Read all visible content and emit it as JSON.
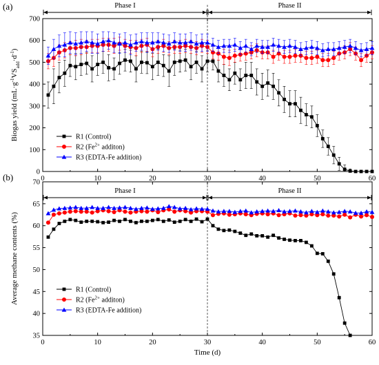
{
  "chart_data": [
    {
      "type": "line",
      "panel_label": "(a)",
      "xlabel": "",
      "ylabel_parts": [
        "Biogas yield (mL·g",
        "-1",
        "VS",
        "add",
        "·d",
        "-1",
        ")"
      ],
      "xlim": [
        0,
        60
      ],
      "ylim": [
        0,
        700
      ],
      "xticks": [
        0,
        10,
        20,
        30,
        40,
        50,
        60
      ],
      "yticks": [
        0,
        100,
        200,
        300,
        400,
        500,
        600,
        700
      ],
      "phase_divider_x": 30,
      "phases": [
        "Phase I",
        "Phase II"
      ],
      "error_bars": true,
      "legend_position": "bottom-left",
      "legend": [
        {
          "parts": [
            "R1 (Control)"
          ]
        },
        {
          "parts": [
            "R2 (Fe",
            "2+",
            " additon)"
          ]
        },
        {
          "parts": [
            "R3 (EDTA-Fe addition)"
          ]
        }
      ],
      "x": [
        1,
        2,
        3,
        4,
        5,
        6,
        7,
        8,
        9,
        10,
        11,
        12,
        13,
        14,
        15,
        16,
        17,
        18,
        19,
        20,
        21,
        22,
        23,
        24,
        25,
        26,
        27,
        28,
        29,
        30,
        31,
        32,
        33,
        34,
        35,
        36,
        37,
        38,
        39,
        40,
        41,
        42,
        43,
        44,
        45,
        46,
        47,
        48,
        49,
        50,
        51,
        52,
        53,
        54,
        55,
        56,
        57,
        58,
        59,
        60
      ],
      "series": [
        {
          "name": "R1 (Control)",
          "color": "#000000",
          "marker": "square",
          "values": [
            350,
            390,
            430,
            450,
            485,
            480,
            490,
            495,
            470,
            490,
            500,
            475,
            470,
            495,
            510,
            505,
            470,
            500,
            498,
            480,
            500,
            485,
            460,
            500,
            505,
            510,
            480,
            500,
            470,
            505,
            505,
            460,
            440,
            420,
            450,
            420,
            440,
            440,
            410,
            390,
            405,
            390,
            360,
            330,
            310,
            310,
            280,
            260,
            250,
            210,
            150,
            115,
            75,
            35,
            10,
            2,
            0,
            0,
            0,
            0
          ],
          "errors": [
            60,
            80,
            70,
            60,
            50,
            60,
            50,
            50,
            60,
            50,
            50,
            60,
            50,
            50,
            50,
            50,
            60,
            50,
            50,
            60,
            60,
            50,
            70,
            60,
            50,
            50,
            60,
            50,
            60,
            50,
            40,
            50,
            50,
            50,
            50,
            50,
            60,
            60,
            60,
            60,
            60,
            60,
            60,
            60,
            60,
            60,
            60,
            50,
            50,
            50,
            40,
            40,
            40,
            30,
            20,
            10,
            5,
            5,
            5,
            5
          ]
        },
        {
          "name": "R2 (Fe2+ additon)",
          "color": "#ff0000",
          "marker": "circle",
          "values": [
            505,
            520,
            545,
            555,
            565,
            565,
            570,
            570,
            575,
            575,
            580,
            580,
            575,
            585,
            575,
            570,
            565,
            575,
            580,
            560,
            570,
            575,
            565,
            570,
            570,
            575,
            570,
            565,
            575,
            570,
            545,
            540,
            525,
            520,
            530,
            535,
            540,
            545,
            555,
            545,
            545,
            525,
            540,
            525,
            525,
            530,
            530,
            520,
            520,
            525,
            510,
            510,
            520,
            540,
            545,
            560,
            540,
            510,
            530,
            545
          ],
          "errors": [
            35,
            40,
            35,
            35,
            30,
            35,
            35,
            30,
            30,
            30,
            30,
            30,
            35,
            30,
            30,
            30,
            35,
            30,
            30,
            35,
            30,
            30,
            30,
            30,
            30,
            30,
            30,
            30,
            30,
            30,
            30,
            30,
            35,
            35,
            30,
            30,
            30,
            30,
            30,
            30,
            30,
            30,
            30,
            30,
            30,
            30,
            30,
            30,
            30,
            30,
            30,
            30,
            30,
            30,
            30,
            30,
            30,
            30,
            30,
            30
          ]
        },
        {
          "name": "R3 (EDTA-Fe addition)",
          "color": "#0000ff",
          "marker": "triangle",
          "values": [
            530,
            560,
            575,
            580,
            590,
            585,
            590,
            595,
            590,
            585,
            595,
            600,
            590,
            585,
            590,
            580,
            590,
            595,
            590,
            590,
            595,
            590,
            585,
            595,
            590,
            590,
            595,
            585,
            590,
            590,
            580,
            570,
            575,
            575,
            580,
            565,
            575,
            560,
            575,
            570,
            570,
            580,
            575,
            570,
            575,
            570,
            560,
            565,
            570,
            565,
            555,
            560,
            560,
            565,
            570,
            575,
            565,
            555,
            560,
            565
          ],
          "errors": [
            40,
            45,
            50,
            55,
            50,
            50,
            50,
            45,
            50,
            45,
            45,
            40,
            45,
            45,
            45,
            45,
            40,
            40,
            45,
            45,
            40,
            40,
            40,
            40,
            40,
            40,
            40,
            40,
            40,
            40,
            30,
            30,
            30,
            30,
            30,
            30,
            30,
            30,
            30,
            30,
            30,
            30,
            30,
            30,
            30,
            30,
            30,
            30,
            30,
            30,
            30,
            30,
            30,
            30,
            30,
            30,
            30,
            30,
            30,
            30
          ]
        }
      ]
    },
    {
      "type": "line",
      "panel_label": "(b)",
      "xlabel": "Time (d)",
      "ylabel": "Average methane contents (%)",
      "xlim": [
        0,
        60
      ],
      "ylim": [
        35,
        70
      ],
      "xticks": [
        0,
        10,
        20,
        30,
        40,
        50,
        60
      ],
      "yticks": [
        35,
        40,
        45,
        50,
        55,
        60,
        65,
        70
      ],
      "phase_divider_x": 30,
      "phases": [
        "Phase I",
        "Phase II"
      ],
      "legend_position": "bottom-left",
      "legend": [
        {
          "parts": [
            "R1 (Control)"
          ]
        },
        {
          "parts": [
            "R2 (Fe",
            "2+",
            " additon)"
          ]
        },
        {
          "parts": [
            "R3 (EDTA-Fe addition)"
          ]
        }
      ],
      "x": [
        1,
        2,
        3,
        4,
        5,
        6,
        7,
        8,
        9,
        10,
        11,
        12,
        13,
        14,
        15,
        16,
        17,
        18,
        19,
        20,
        21,
        22,
        23,
        24,
        25,
        26,
        27,
        28,
        29,
        30,
        31,
        32,
        33,
        34,
        35,
        36,
        37,
        38,
        39,
        40,
        41,
        42,
        43,
        44,
        45,
        46,
        47,
        48,
        49,
        50,
        51,
        52,
        53,
        54,
        55,
        56,
        57,
        58,
        59,
        60
      ],
      "series": [
        {
          "name": "R1 (Control)",
          "color": "#000000",
          "marker": "square",
          "values": [
            57.4,
            59.2,
            60.5,
            61.0,
            61.4,
            61.2,
            60.8,
            61.0,
            61.0,
            60.9,
            60.7,
            60.8,
            61.2,
            61.0,
            61.4,
            61.0,
            60.7,
            61.0,
            61.0,
            61.2,
            61.4,
            61.0,
            61.3,
            60.8,
            61.0,
            61.4,
            61.0,
            61.5,
            60.9,
            61.5,
            60.0,
            59.2,
            58.9,
            59.0,
            58.7,
            58.3,
            57.8,
            58.1,
            57.7,
            57.7,
            57.4,
            57.8,
            57.2,
            56.9,
            56.7,
            56.6,
            56.6,
            56.2,
            55.4,
            53.7,
            53.6,
            51.9,
            49.0,
            43.6,
            37.8,
            35.0,
            null,
            null,
            null,
            null
          ]
        },
        {
          "name": "R2 (Fe2+ additon)",
          "color": "#ff0000",
          "marker": "circle",
          "values": [
            60.7,
            62.5,
            62.8,
            63.0,
            63.2,
            63.3,
            63.2,
            63.2,
            63.0,
            63.3,
            63.5,
            63.3,
            63.1,
            63.5,
            63.2,
            63.0,
            63.2,
            63.3,
            63.2,
            63.5,
            63.1,
            63.5,
            63.7,
            63.2,
            63.5,
            63.3,
            63.0,
            63.3,
            63.3,
            63.2,
            62.4,
            62.7,
            62.8,
            62.5,
            62.6,
            62.8,
            62.6,
            62.4,
            62.7,
            62.8,
            62.6,
            62.8,
            62.4,
            62.6,
            62.8,
            62.3,
            62.4,
            62.3,
            62.6,
            62.4,
            62.6,
            62.3,
            62.3,
            62.1,
            62.5,
            61.9,
            62.5,
            62.1,
            62.4,
            62.0
          ]
        },
        {
          "name": "R3 (EDTA-Fe addition)",
          "color": "#0000ff",
          "marker": "triangle",
          "values": [
            62.8,
            63.6,
            63.9,
            64.0,
            64.1,
            64.2,
            64.0,
            64.0,
            64.2,
            64.0,
            64.0,
            64.2,
            64.0,
            64.1,
            64.2,
            64.0,
            63.8,
            64.0,
            64.1,
            63.8,
            63.9,
            64.0,
            64.4,
            64.2,
            63.9,
            64.0,
            63.7,
            63.9,
            63.8,
            63.8,
            63.4,
            63.2,
            63.3,
            63.3,
            63.1,
            63.3,
            63.4,
            63.0,
            63.2,
            63.3,
            63.4,
            63.3,
            63.5,
            63.2,
            63.3,
            63.4,
            63.2,
            63.0,
            63.3,
            63.1,
            63.4,
            63.2,
            63.0,
            63.1,
            63.3,
            63.2,
            62.9,
            62.9,
            63.2,
            63.1
          ]
        }
      ]
    }
  ]
}
